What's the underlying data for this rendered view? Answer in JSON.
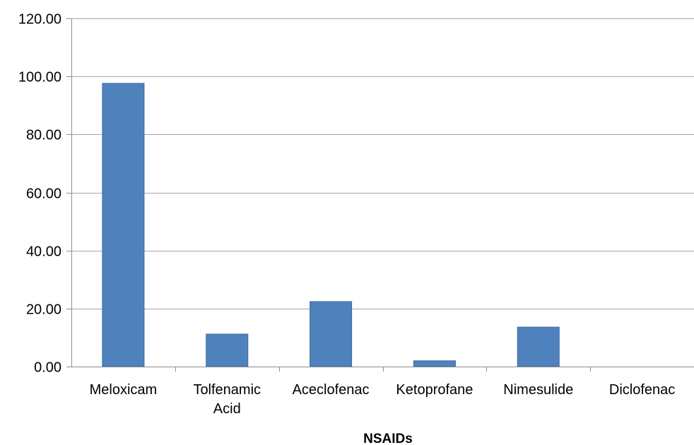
{
  "chart_data": {
    "type": "bar",
    "categories": [
      "Meloxicam",
      "Tolfenamic Acid",
      "Aceclofenac",
      "Ketoprofane",
      "Nimesulide",
      "Diclofenac"
    ],
    "category_lines": [
      [
        "Meloxicam"
      ],
      [
        "Tolfenamic",
        "Acid"
      ],
      [
        "Aceclofenac"
      ],
      [
        "Ketoprofane"
      ],
      [
        "Nimesulide"
      ],
      [
        "Diclofenac"
      ]
    ],
    "values": [
      97.6,
      11.2,
      22.4,
      2.0,
      13.6,
      0.0
    ],
    "xlabel": "NSAIDs",
    "ylabel": "",
    "ylim": [
      0,
      120
    ],
    "yticks": [
      "0.00",
      "20.00",
      "40.00",
      "60.00",
      "80.00",
      "100.00",
      "120.00"
    ],
    "grid": "horizontal",
    "legend": "none",
    "colors": {
      "bar": "#4f81bd",
      "bar_edge": "#3a6aa3",
      "grid": "#a6a6a6",
      "axis": "#8c8c8c"
    }
  }
}
